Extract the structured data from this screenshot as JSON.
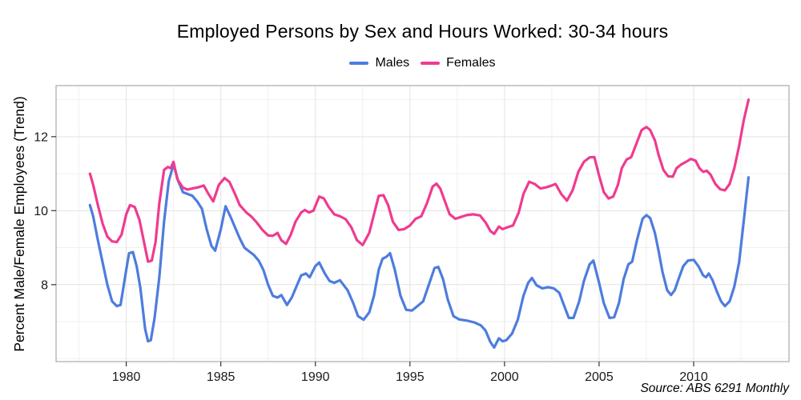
{
  "page": {
    "title": "Employed Persons by Sex and Hours Worked: 30-34 hours",
    "source_note": "Source: ABS 6291 Monthly"
  },
  "legend": {
    "items": [
      {
        "label": "Males",
        "color": "#4E7CDE"
      },
      {
        "label": "Females",
        "color": "#EF3B8F"
      }
    ]
  },
  "chart_data": {
    "type": "line",
    "title": "Employed Persons by Sex and Hours Worked: 30-34 hours",
    "xlabel": "",
    "ylabel": "Percent Male/Female Employees (Trend)",
    "source_note": "Source: ABS 6291 Monthly",
    "xlim": [
      1976.29,
      2015.04
    ],
    "ylim": [
      5.92,
      13.38
    ],
    "x_ticks": [
      1980,
      1985,
      1990,
      1995,
      2000,
      2005,
      2010
    ],
    "x_minor_gridlines": [
      1977.5,
      1982.5,
      1987.5,
      1992.5,
      1997.5,
      2002.5,
      2007.5,
      2012.5
    ],
    "y_ticks": [
      8,
      10,
      12
    ],
    "y_minor_gridlines": [
      6,
      7,
      9,
      11,
      13
    ],
    "grid": true,
    "legend_position": "top-center",
    "series": [
      {
        "name": "Males",
        "color": "#4E7CDE",
        "points": [
          [
            1978.08,
            10.15
          ],
          [
            1978.25,
            9.85
          ],
          [
            1978.5,
            9.2
          ],
          [
            1978.75,
            8.6
          ],
          [
            1979.0,
            8.0
          ],
          [
            1979.25,
            7.55
          ],
          [
            1979.5,
            7.42
          ],
          [
            1979.7,
            7.45
          ],
          [
            1980.0,
            8.4
          ],
          [
            1980.15,
            8.85
          ],
          [
            1980.35,
            8.88
          ],
          [
            1980.55,
            8.5
          ],
          [
            1980.75,
            7.9
          ],
          [
            1981.0,
            6.8
          ],
          [
            1981.15,
            6.47
          ],
          [
            1981.3,
            6.5
          ],
          [
            1981.5,
            7.1
          ],
          [
            1981.75,
            8.2
          ],
          [
            1982.0,
            9.7
          ],
          [
            1982.25,
            10.8
          ],
          [
            1982.5,
            11.25
          ],
          [
            1982.75,
            10.8
          ],
          [
            1983.0,
            10.5
          ],
          [
            1983.25,
            10.45
          ],
          [
            1983.5,
            10.4
          ],
          [
            1983.75,
            10.25
          ],
          [
            1984.0,
            10.05
          ],
          [
            1984.25,
            9.5
          ],
          [
            1984.5,
            9.05
          ],
          [
            1984.7,
            8.92
          ],
          [
            1985.0,
            9.5
          ],
          [
            1985.25,
            10.12
          ],
          [
            1985.5,
            9.85
          ],
          [
            1985.75,
            9.55
          ],
          [
            1986.0,
            9.25
          ],
          [
            1986.25,
            9.0
          ],
          [
            1986.5,
            8.9
          ],
          [
            1986.75,
            8.8
          ],
          [
            1987.0,
            8.65
          ],
          [
            1987.25,
            8.4
          ],
          [
            1987.5,
            8.0
          ],
          [
            1987.75,
            7.7
          ],
          [
            1988.0,
            7.65
          ],
          [
            1988.2,
            7.72
          ],
          [
            1988.5,
            7.45
          ],
          [
            1988.75,
            7.65
          ],
          [
            1989.0,
            7.95
          ],
          [
            1989.25,
            8.25
          ],
          [
            1989.5,
            8.3
          ],
          [
            1989.7,
            8.2
          ],
          [
            1990.0,
            8.5
          ],
          [
            1990.2,
            8.6
          ],
          [
            1990.5,
            8.3
          ],
          [
            1990.75,
            8.1
          ],
          [
            1991.0,
            8.05
          ],
          [
            1991.3,
            8.12
          ],
          [
            1991.7,
            7.85
          ],
          [
            1992.0,
            7.5
          ],
          [
            1992.25,
            7.15
          ],
          [
            1992.55,
            7.05
          ],
          [
            1992.85,
            7.25
          ],
          [
            1993.1,
            7.7
          ],
          [
            1993.35,
            8.4
          ],
          [
            1993.55,
            8.7
          ],
          [
            1993.75,
            8.75
          ],
          [
            1993.95,
            8.85
          ],
          [
            1994.2,
            8.4
          ],
          [
            1994.5,
            7.7
          ],
          [
            1994.8,
            7.32
          ],
          [
            1995.1,
            7.3
          ],
          [
            1995.4,
            7.42
          ],
          [
            1995.7,
            7.55
          ],
          [
            1996.0,
            8.0
          ],
          [
            1996.3,
            8.45
          ],
          [
            1996.5,
            8.48
          ],
          [
            1996.75,
            8.15
          ],
          [
            1997.0,
            7.6
          ],
          [
            1997.3,
            7.15
          ],
          [
            1997.6,
            7.06
          ],
          [
            1998.0,
            7.03
          ],
          [
            1998.4,
            6.98
          ],
          [
            1998.75,
            6.9
          ],
          [
            1999.0,
            6.76
          ],
          [
            1999.25,
            6.45
          ],
          [
            1999.45,
            6.3
          ],
          [
            1999.7,
            6.55
          ],
          [
            1999.9,
            6.47
          ],
          [
            2000.1,
            6.5
          ],
          [
            2000.4,
            6.68
          ],
          [
            2000.7,
            7.05
          ],
          [
            2001.0,
            7.7
          ],
          [
            2001.25,
            8.05
          ],
          [
            2001.45,
            8.18
          ],
          [
            2001.7,
            7.98
          ],
          [
            2002.0,
            7.9
          ],
          [
            2002.3,
            7.93
          ],
          [
            2002.6,
            7.9
          ],
          [
            2002.9,
            7.78
          ],
          [
            2003.1,
            7.5
          ],
          [
            2003.4,
            7.1
          ],
          [
            2003.65,
            7.1
          ],
          [
            2003.95,
            7.55
          ],
          [
            2004.2,
            8.1
          ],
          [
            2004.5,
            8.55
          ],
          [
            2004.7,
            8.65
          ],
          [
            2005.0,
            8.05
          ],
          [
            2005.25,
            7.5
          ],
          [
            2005.55,
            7.1
          ],
          [
            2005.8,
            7.12
          ],
          [
            2006.05,
            7.5
          ],
          [
            2006.3,
            8.15
          ],
          [
            2006.55,
            8.55
          ],
          [
            2006.75,
            8.62
          ],
          [
            2007.0,
            9.2
          ],
          [
            2007.3,
            9.78
          ],
          [
            2007.5,
            9.88
          ],
          [
            2007.7,
            9.8
          ],
          [
            2007.95,
            9.4
          ],
          [
            2008.15,
            8.9
          ],
          [
            2008.35,
            8.35
          ],
          [
            2008.6,
            7.85
          ],
          [
            2008.8,
            7.72
          ],
          [
            2009.0,
            7.85
          ],
          [
            2009.2,
            8.15
          ],
          [
            2009.45,
            8.5
          ],
          [
            2009.7,
            8.65
          ],
          [
            2010.0,
            8.67
          ],
          [
            2010.25,
            8.5
          ],
          [
            2010.5,
            8.25
          ],
          [
            2010.65,
            8.2
          ],
          [
            2010.8,
            8.3
          ],
          [
            2011.0,
            8.12
          ],
          [
            2011.2,
            7.85
          ],
          [
            2011.45,
            7.55
          ],
          [
            2011.65,
            7.42
          ],
          [
            2011.9,
            7.55
          ],
          [
            2012.15,
            7.95
          ],
          [
            2012.4,
            8.6
          ],
          [
            2012.6,
            9.5
          ],
          [
            2012.9,
            10.9
          ]
        ]
      },
      {
        "name": "Females",
        "color": "#EF3B8F",
        "points": [
          [
            1978.08,
            11.0
          ],
          [
            1978.25,
            10.7
          ],
          [
            1978.5,
            10.15
          ],
          [
            1978.75,
            9.65
          ],
          [
            1979.0,
            9.3
          ],
          [
            1979.25,
            9.17
          ],
          [
            1979.5,
            9.15
          ],
          [
            1979.75,
            9.35
          ],
          [
            1980.0,
            9.9
          ],
          [
            1980.2,
            10.15
          ],
          [
            1980.45,
            10.1
          ],
          [
            1980.7,
            9.75
          ],
          [
            1981.0,
            9.0
          ],
          [
            1981.15,
            8.62
          ],
          [
            1981.35,
            8.65
          ],
          [
            1981.55,
            9.15
          ],
          [
            1981.75,
            10.2
          ],
          [
            1982.0,
            11.1
          ],
          [
            1982.2,
            11.18
          ],
          [
            1982.35,
            11.15
          ],
          [
            1982.5,
            11.32
          ],
          [
            1982.7,
            10.85
          ],
          [
            1983.0,
            10.62
          ],
          [
            1983.25,
            10.57
          ],
          [
            1983.5,
            10.6
          ],
          [
            1983.8,
            10.63
          ],
          [
            1984.1,
            10.68
          ],
          [
            1984.35,
            10.45
          ],
          [
            1984.6,
            10.25
          ],
          [
            1984.9,
            10.7
          ],
          [
            1985.2,
            10.88
          ],
          [
            1985.45,
            10.78
          ],
          [
            1985.75,
            10.45
          ],
          [
            1986.0,
            10.15
          ],
          [
            1986.35,
            9.95
          ],
          [
            1986.6,
            9.85
          ],
          [
            1986.9,
            9.68
          ],
          [
            1987.2,
            9.48
          ],
          [
            1987.5,
            9.33
          ],
          [
            1987.75,
            9.32
          ],
          [
            1988.0,
            9.4
          ],
          [
            1988.2,
            9.2
          ],
          [
            1988.45,
            9.1
          ],
          [
            1988.7,
            9.35
          ],
          [
            1988.95,
            9.7
          ],
          [
            1989.25,
            9.95
          ],
          [
            1989.45,
            10.02
          ],
          [
            1989.65,
            9.95
          ],
          [
            1989.9,
            10.0
          ],
          [
            1990.2,
            10.38
          ],
          [
            1990.45,
            10.33
          ],
          [
            1990.7,
            10.1
          ],
          [
            1991.0,
            9.9
          ],
          [
            1991.3,
            9.85
          ],
          [
            1991.6,
            9.77
          ],
          [
            1991.9,
            9.55
          ],
          [
            1992.2,
            9.2
          ],
          [
            1992.5,
            9.07
          ],
          [
            1992.85,
            9.4
          ],
          [
            1993.1,
            9.9
          ],
          [
            1993.35,
            10.4
          ],
          [
            1993.6,
            10.42
          ],
          [
            1993.85,
            10.15
          ],
          [
            1994.1,
            9.7
          ],
          [
            1994.4,
            9.48
          ],
          [
            1994.7,
            9.5
          ],
          [
            1995.0,
            9.6
          ],
          [
            1995.3,
            9.78
          ],
          [
            1995.6,
            9.85
          ],
          [
            1995.9,
            10.2
          ],
          [
            1996.2,
            10.65
          ],
          [
            1996.4,
            10.73
          ],
          [
            1996.6,
            10.6
          ],
          [
            1996.85,
            10.25
          ],
          [
            1997.1,
            9.9
          ],
          [
            1997.4,
            9.78
          ],
          [
            1997.7,
            9.83
          ],
          [
            1998.0,
            9.88
          ],
          [
            1998.35,
            9.9
          ],
          [
            1998.7,
            9.87
          ],
          [
            1999.0,
            9.68
          ],
          [
            1999.25,
            9.45
          ],
          [
            1999.45,
            9.37
          ],
          [
            1999.7,
            9.57
          ],
          [
            1999.9,
            9.5
          ],
          [
            2000.15,
            9.55
          ],
          [
            2000.45,
            9.6
          ],
          [
            2000.75,
            9.95
          ],
          [
            2001.0,
            10.45
          ],
          [
            2001.3,
            10.78
          ],
          [
            2001.6,
            10.72
          ],
          [
            2001.9,
            10.6
          ],
          [
            2002.2,
            10.63
          ],
          [
            2002.45,
            10.67
          ],
          [
            2002.7,
            10.72
          ],
          [
            2003.0,
            10.45
          ],
          [
            2003.3,
            10.27
          ],
          [
            2003.6,
            10.55
          ],
          [
            2003.9,
            11.05
          ],
          [
            2004.2,
            11.32
          ],
          [
            2004.5,
            11.44
          ],
          [
            2004.75,
            11.45
          ],
          [
            2005.0,
            10.95
          ],
          [
            2005.25,
            10.5
          ],
          [
            2005.5,
            10.33
          ],
          [
            2005.75,
            10.38
          ],
          [
            2006.0,
            10.7
          ],
          [
            2006.2,
            11.15
          ],
          [
            2006.45,
            11.38
          ],
          [
            2006.7,
            11.45
          ],
          [
            2007.0,
            11.85
          ],
          [
            2007.25,
            12.18
          ],
          [
            2007.5,
            12.26
          ],
          [
            2007.7,
            12.18
          ],
          [
            2007.95,
            11.9
          ],
          [
            2008.15,
            11.5
          ],
          [
            2008.4,
            11.1
          ],
          [
            2008.65,
            10.93
          ],
          [
            2008.9,
            10.92
          ],
          [
            2009.1,
            11.15
          ],
          [
            2009.35,
            11.25
          ],
          [
            2009.6,
            11.32
          ],
          [
            2009.85,
            11.4
          ],
          [
            2010.1,
            11.35
          ],
          [
            2010.3,
            11.15
          ],
          [
            2010.5,
            11.05
          ],
          [
            2010.7,
            11.08
          ],
          [
            2010.9,
            10.97
          ],
          [
            2011.15,
            10.72
          ],
          [
            2011.4,
            10.58
          ],
          [
            2011.65,
            10.55
          ],
          [
            2011.9,
            10.72
          ],
          [
            2012.15,
            11.15
          ],
          [
            2012.4,
            11.75
          ],
          [
            2012.65,
            12.45
          ],
          [
            2012.9,
            13.0
          ]
        ]
      }
    ],
    "style": {
      "grid_major_color": "#E3E3E3",
      "grid_minor_color": "#F0F0F0",
      "panel_border_color": "#A9A9A9",
      "tick_color": "#333333",
      "line_width": 3.2
    }
  }
}
